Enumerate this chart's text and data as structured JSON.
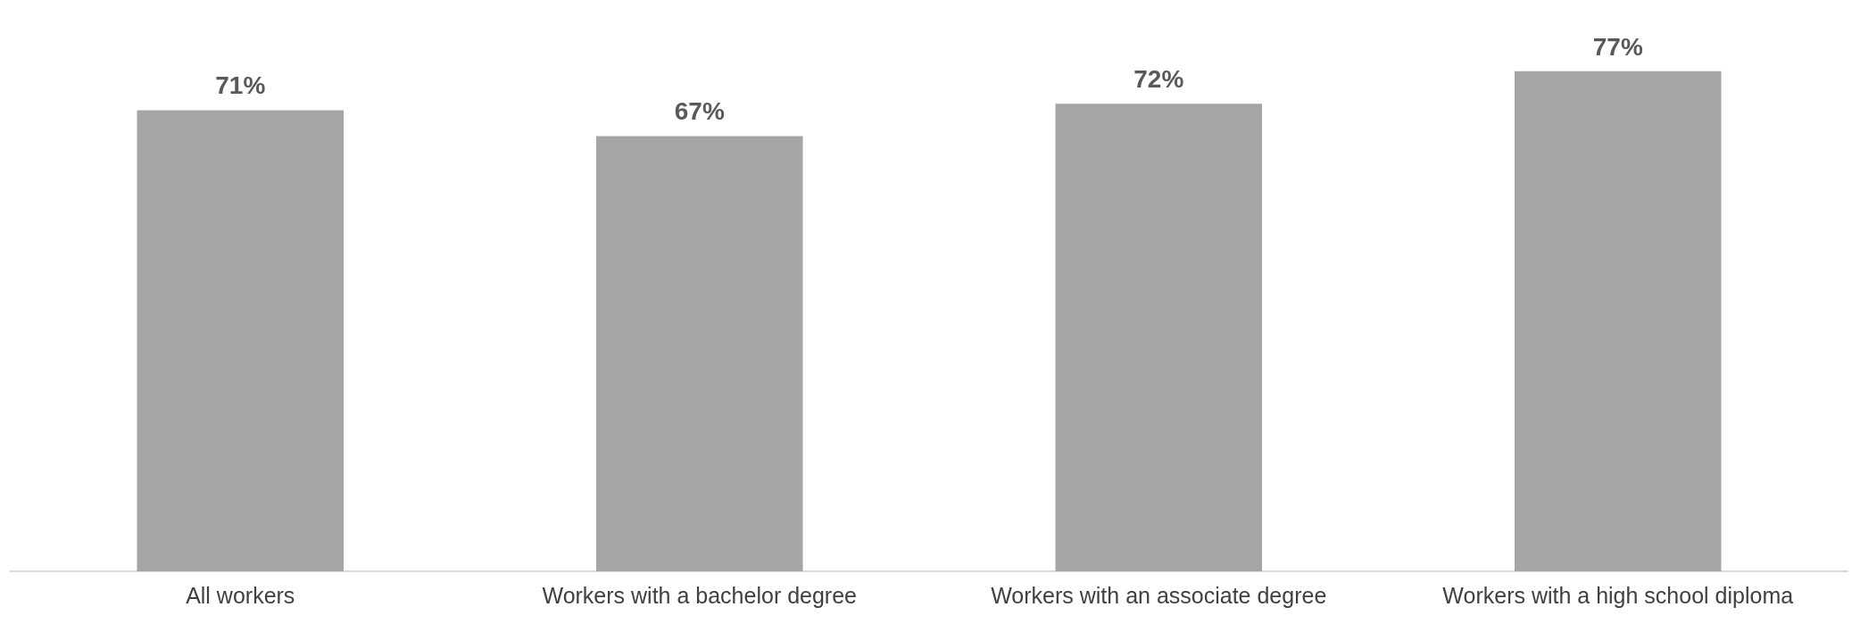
{
  "chart_data": {
    "type": "bar",
    "categories": [
      "All workers",
      "Workers with a bachelor degree",
      "Workers with an associate degree",
      "Workers with a high school diploma"
    ],
    "values": [
      71,
      67,
      72,
      77
    ],
    "color": "#a5a5a5",
    "value_labels": [
      "71%",
      "67%",
      "72%",
      "77%"
    ],
    "tick_labels": "x",
    "grid": false,
    "legend": false
  }
}
